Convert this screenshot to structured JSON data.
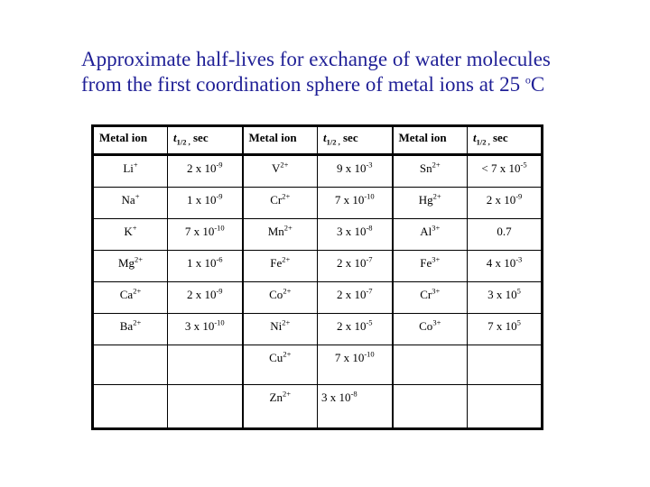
{
  "title": {
    "line1": "Approximate half-lives for exchange of water molecules",
    "line2_pre": "from the first coordination sphere of metal ions at 25 ",
    "degree_mark": "o",
    "temperature_unit": "C",
    "color": "#1f1f96"
  },
  "table": {
    "header": {
      "ion_label": "Metal ion",
      "halflife_symbol": "t",
      "halflife_subscript": "1/2 ,",
      "halflife_unit": " sec"
    },
    "rows": [
      [
        {
          "ion": "Li",
          "ion_sup": "+",
          "val": "2 x 10",
          "val_sup": "-9"
        },
        {
          "ion": "V",
          "ion_sup": "2+",
          "val": "9 x 10",
          "val_sup": "-3"
        },
        {
          "ion": "Sn",
          "ion_sup": "2+",
          "val": "< 7 x 10",
          "val_sup": "-5"
        }
      ],
      [
        {
          "ion": "Na",
          "ion_sup": "+",
          "val": "1 x 10",
          "val_sup": "-9"
        },
        {
          "ion": "Cr",
          "ion_sup": "2+",
          "val": "7 x 10",
          "val_sup": "-10"
        },
        {
          "ion": "Hg",
          "ion_sup": "2+",
          "val": "2 x 10",
          "val_sup": "-9"
        }
      ],
      [
        {
          "ion": "K",
          "ion_sup": "+",
          "val": "7 x 10",
          "val_sup": "-10"
        },
        {
          "ion": "Mn",
          "ion_sup": "2+",
          "val": "3 x 10",
          "val_sup": "-8"
        },
        {
          "ion": "Al",
          "ion_sup": "3+",
          "val": "0.7",
          "val_sup": ""
        }
      ],
      [
        {
          "ion": "Mg",
          "ion_sup": "2+",
          "val": "1 x 10",
          "val_sup": "-6"
        },
        {
          "ion": "Fe",
          "ion_sup": "2+",
          "val": "2 x 10",
          "val_sup": "-7"
        },
        {
          "ion": "Fe",
          "ion_sup": "3+",
          "val": "4 x 10",
          "val_sup": "-3"
        }
      ],
      [
        {
          "ion": "Ca",
          "ion_sup": "2+",
          "val": "2 x 10",
          "val_sup": "-9"
        },
        {
          "ion": "Co",
          "ion_sup": "2+",
          "val": "2 x 10",
          "val_sup": "-7"
        },
        {
          "ion": "Cr",
          "ion_sup": "3+",
          "val": "3 x 10",
          "val_sup": "5"
        }
      ],
      [
        {
          "ion": "Ba",
          "ion_sup": "2+",
          "val": "3 x 10",
          "val_sup": "-10"
        },
        {
          "ion": "Ni",
          "ion_sup": "2+",
          "val": "2 x 10",
          "val_sup": "-5"
        },
        {
          "ion": "Co",
          "ion_sup": "3+",
          "val": "7 x 10",
          "val_sup": "5"
        }
      ],
      [
        null,
        {
          "ion": "Cu",
          "ion_sup": "2+",
          "val": "7 x 10",
          "val_sup": "-10"
        },
        null
      ],
      [
        null,
        {
          "ion": "Zn",
          "ion_sup": "2+",
          "val": "3 x 10",
          "val_sup": "-8",
          "val_align": "left"
        },
        null
      ]
    ]
  }
}
